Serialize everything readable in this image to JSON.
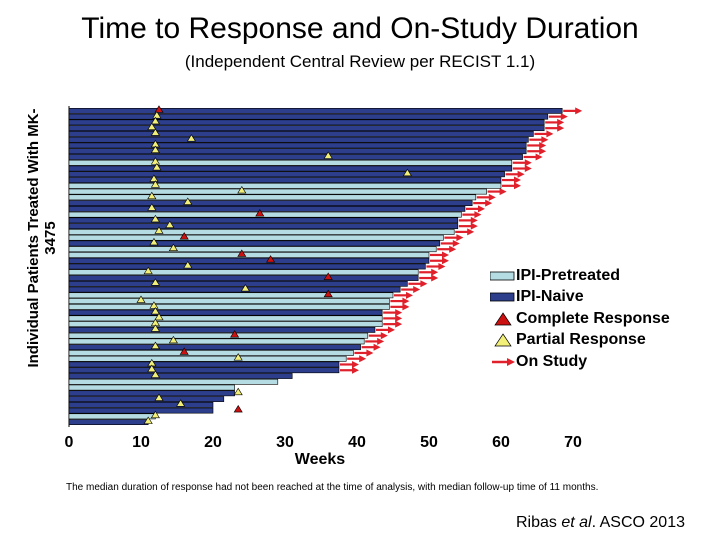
{
  "chart_data": {
    "type": "bar",
    "orientation": "horizontal",
    "title": "Time to Response and On-Study Duration",
    "subtitle": "(Independent Central Review per RECIST 1.1)",
    "xlabel": "Weeks",
    "ylabel": "Individual Patients Treated With MK-3475",
    "xlim": [
      0,
      72
    ],
    "xticks": [
      0,
      10,
      20,
      30,
      40,
      50,
      60,
      70
    ],
    "grid": false,
    "legend_position": "right",
    "legend": [
      {
        "label": "IPI-Pretreated",
        "kind": "bar",
        "color": "#b6dce3"
      },
      {
        "label": "IPI-Naive",
        "kind": "bar",
        "color": "#2c3e8c"
      },
      {
        "label": "Complete Response",
        "kind": "triangle",
        "color": "#cc1111"
      },
      {
        "label": "Partial Response",
        "kind": "triangle",
        "color": "#f3f07a"
      },
      {
        "label": "On Study",
        "kind": "arrow",
        "color": "#e0202a"
      }
    ],
    "patients": [
      {
        "duration": 68.5,
        "group": "naive",
        "response": 12.5,
        "type": "CR",
        "on_study": true
      },
      {
        "duration": 66.5,
        "group": "naive",
        "response": 12.2,
        "type": "PR",
        "on_study": true
      },
      {
        "duration": 66.0,
        "group": "naive",
        "response": 12.0,
        "type": "PR",
        "on_study": true
      },
      {
        "duration": 66.0,
        "group": "naive",
        "response": 11.5,
        "type": "PR",
        "on_study": true
      },
      {
        "duration": 64.5,
        "group": "naive",
        "response": 12.0,
        "type": "PR",
        "on_study": true
      },
      {
        "duration": 63.8,
        "group": "naive",
        "response": 17.0,
        "type": "PR",
        "on_study": true
      },
      {
        "duration": 63.5,
        "group": "naive",
        "response": 12.0,
        "type": "PR",
        "on_study": true
      },
      {
        "duration": 63.5,
        "group": "naive",
        "response": 12.0,
        "type": "PR",
        "on_study": true
      },
      {
        "duration": 63.0,
        "group": "naive",
        "response": 36.0,
        "type": "PR",
        "on_study": true
      },
      {
        "duration": 61.5,
        "group": "pre",
        "response": 12.0,
        "type": "PR",
        "on_study": true
      },
      {
        "duration": 61.5,
        "group": "naive",
        "response": 12.2,
        "type": "PR",
        "on_study": true
      },
      {
        "duration": 60.5,
        "group": "naive",
        "response": 47.0,
        "type": "PR",
        "on_study": true
      },
      {
        "duration": 60.0,
        "group": "naive",
        "response": 11.8,
        "type": "PR",
        "on_study": true
      },
      {
        "duration": 60.0,
        "group": "pre",
        "response": 12.0,
        "type": "PR",
        "on_study": true
      },
      {
        "duration": 58.0,
        "group": "pre",
        "response": 24.0,
        "type": "PR",
        "on_study": true
      },
      {
        "duration": 56.5,
        "group": "pre",
        "response": 11.5,
        "type": "PR",
        "on_study": true
      },
      {
        "duration": 56.0,
        "group": "naive",
        "response": 16.5,
        "type": "PR",
        "on_study": true
      },
      {
        "duration": 55.0,
        "group": "naive",
        "response": 11.5,
        "type": "PR",
        "on_study": true
      },
      {
        "duration": 54.5,
        "group": "pre",
        "response": 26.5,
        "type": "CR",
        "on_study": true
      },
      {
        "duration": 54.0,
        "group": "naive",
        "response": 12.0,
        "type": "PR",
        "on_study": true
      },
      {
        "duration": 54.0,
        "group": "naive",
        "response": 14.0,
        "type": "PR",
        "on_study": true
      },
      {
        "duration": 53.5,
        "group": "pre",
        "response": 12.5,
        "type": "PR",
        "on_study": true
      },
      {
        "duration": 52.0,
        "group": "pre",
        "response": 16.0,
        "type": "CR",
        "on_study": true
      },
      {
        "duration": 51.5,
        "group": "naive",
        "response": 11.8,
        "type": "PR",
        "on_study": true
      },
      {
        "duration": 51.0,
        "group": "pre",
        "response": 14.5,
        "type": "PR",
        "on_study": true
      },
      {
        "duration": 50.0,
        "group": "pre",
        "response": 24.0,
        "type": "CR",
        "on_study": true
      },
      {
        "duration": 50.0,
        "group": "naive",
        "response": 28.0,
        "type": "CR",
        "on_study": true
      },
      {
        "duration": 49.5,
        "group": "naive",
        "response": 16.5,
        "type": "PR",
        "on_study": true
      },
      {
        "duration": 48.5,
        "group": "pre",
        "response": 11.0,
        "type": "PR",
        "on_study": true
      },
      {
        "duration": 48.5,
        "group": "naive",
        "response": 36.0,
        "type": "CR",
        "on_study": true
      },
      {
        "duration": 47.0,
        "group": "naive",
        "response": 12.0,
        "type": "PR",
        "on_study": true
      },
      {
        "duration": 46.0,
        "group": "naive",
        "response": 24.5,
        "type": "PR",
        "on_study": true
      },
      {
        "duration": 45.0,
        "group": "pre",
        "response": 36.0,
        "type": "CR",
        "on_study": true
      },
      {
        "duration": 44.5,
        "group": "pre",
        "response": 10.0,
        "type": "PR",
        "on_study": true
      },
      {
        "duration": 44.5,
        "group": "pre",
        "response": 11.8,
        "type": "PR",
        "on_study": true
      },
      {
        "duration": 43.5,
        "group": "naive",
        "response": 12.0,
        "type": "PR",
        "on_study": true
      },
      {
        "duration": 43.5,
        "group": "pre",
        "response": 12.5,
        "type": "PR",
        "on_study": true
      },
      {
        "duration": 43.5,
        "group": "pre",
        "response": 12.0,
        "type": "PR",
        "on_study": true
      },
      {
        "duration": 42.5,
        "group": "naive",
        "response": 12.0,
        "type": "PR",
        "on_study": true
      },
      {
        "duration": 41.5,
        "group": "pre",
        "response": 23.0,
        "type": "CR",
        "on_study": true
      },
      {
        "duration": 41.0,
        "group": "pre",
        "response": 14.5,
        "type": "PR",
        "on_study": true
      },
      {
        "duration": 40.5,
        "group": "naive",
        "response": 12.0,
        "type": "PR",
        "on_study": true
      },
      {
        "duration": 39.5,
        "group": "pre",
        "response": 16.0,
        "type": "CR",
        "on_study": true
      },
      {
        "duration": 38.5,
        "group": "pre",
        "response": 23.5,
        "type": "PR",
        "on_study": true
      },
      {
        "duration": 37.5,
        "group": "naive",
        "response": 11.5,
        "type": "PR",
        "on_study": true
      },
      {
        "duration": 37.5,
        "group": "naive",
        "response": 11.5,
        "type": "PR",
        "on_study": true
      },
      {
        "duration": 31.0,
        "group": "naive",
        "response": 12.0,
        "type": "PR",
        "on_study": false
      },
      {
        "duration": 29.0,
        "group": "pre",
        "response": null,
        "type": null,
        "on_study": false
      },
      {
        "duration": 23.0,
        "group": "pre",
        "response": null,
        "type": null,
        "on_study": false
      },
      {
        "duration": 23.0,
        "group": "naive",
        "response": 23.5,
        "type": "PR",
        "on_study": false
      },
      {
        "duration": 21.5,
        "group": "naive",
        "response": 12.5,
        "type": "PR",
        "on_study": false
      },
      {
        "duration": 20.0,
        "group": "naive",
        "response": 15.5,
        "type": "PR",
        "on_study": false
      },
      {
        "duration": 20.0,
        "group": "naive",
        "response": 23.5,
        "type": "CR",
        "on_study": false
      },
      {
        "duration": 12.0,
        "group": "pre",
        "response": 12.0,
        "type": "PR",
        "on_study": false
      },
      {
        "duration": 11.0,
        "group": "naive",
        "response": 11.0,
        "type": "PR",
        "on_study": false
      }
    ],
    "footnote": "The median duration of response had not been reached at the time of analysis, with median follow-up time of 11 months.",
    "citation": {
      "author": "Ribas ",
      "etal": "et al",
      "rest": ". ASCO 2013"
    }
  }
}
